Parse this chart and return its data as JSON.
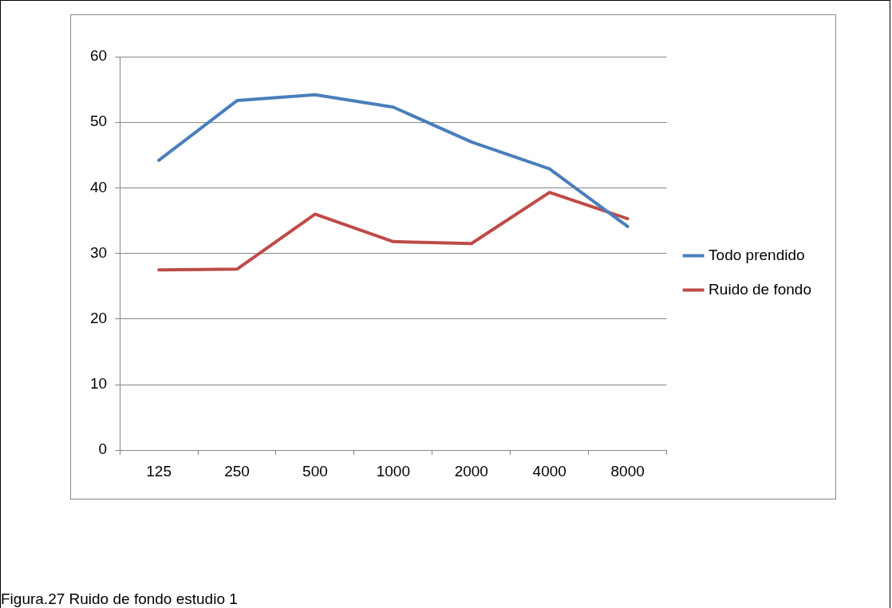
{
  "chart_data": {
    "type": "line",
    "categories": [
      "125",
      "250",
      "500",
      "1000",
      "2000",
      "4000",
      "8000"
    ],
    "series": [
      {
        "name": "Todo prendido",
        "color": "#4a7ebb",
        "values": [
          44.2,
          53.3,
          54.2,
          52.3,
          47,
          42.9,
          34.1
        ]
      },
      {
        "name": "Ruido de fondo",
        "color": "#be4b48",
        "values": [
          27.5,
          27.6,
          36,
          31.8,
          31.5,
          39.3,
          35.3
        ]
      }
    ],
    "ylim": [
      0,
      60
    ],
    "yticks": [
      0,
      10,
      20,
      30,
      40,
      50,
      60
    ],
    "grid": "y",
    "legend": "right",
    "marker": "none",
    "line_style": "solid",
    "annotations": [
      "Figura.27  Ruido de fondo estudio 1"
    ]
  }
}
